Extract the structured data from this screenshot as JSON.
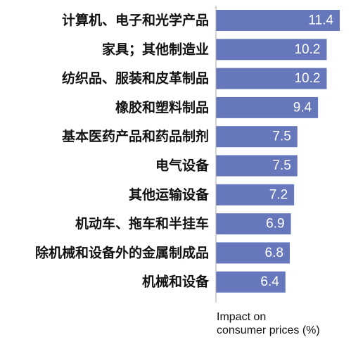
{
  "chart_data": {
    "type": "bar",
    "orientation": "horizontal",
    "categories": [
      "计算机、电子和光学产品",
      "家具；其他制造业",
      "纺织品、服装和皮革制品",
      "橡胶和塑料制品",
      "基本医药产品和药品制剂",
      "电气设备",
      "其他运输设备",
      "机动车、拖车和半挂车",
      "除机械和设备外的金属制成品",
      "机械和设备"
    ],
    "values": [
      11.4,
      10.2,
      10.2,
      9.4,
      7.5,
      7.5,
      7.2,
      6.9,
      6.8,
      6.4
    ],
    "value_labels": [
      "11.4",
      "10.2",
      "10.2",
      "9.4",
      "7.5",
      "7.5",
      "7.2",
      "6.9",
      "6.8",
      "6.4"
    ],
    "xlabel": "Impact on consumer prices (%)",
    "xlabel_lines": [
      "Impact on",
      "consumer prices (%)"
    ],
    "xlim": [
      0,
      11.4
    ],
    "grid": false,
    "bar_color": "#6677bb",
    "axis_color": "#aaaaaa"
  }
}
